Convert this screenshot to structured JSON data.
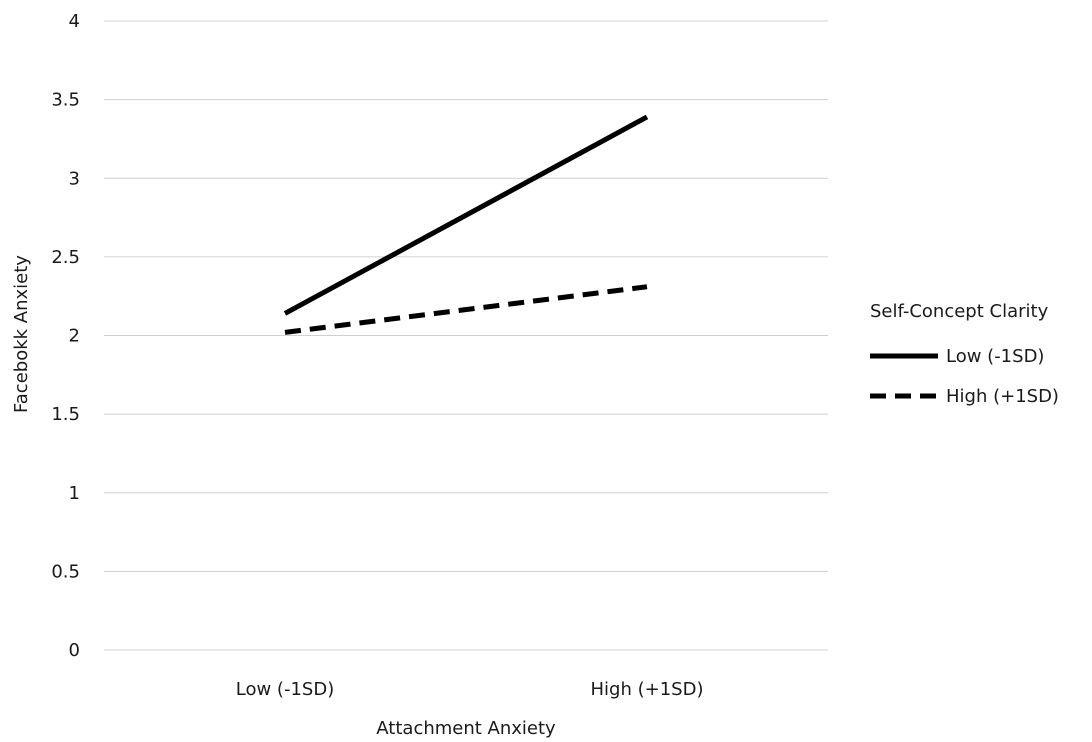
{
  "chart_data": {
    "type": "line",
    "title": "",
    "xlabel": "Attachment Anxiety",
    "ylabel": "Facebokk Anxiety",
    "categories": [
      "Low (-1SD)",
      "High (+1SD)"
    ],
    "ylim": [
      0,
      4
    ],
    "yticks": [
      "0",
      "0.5",
      "1",
      "1.5",
      "2",
      "2.5",
      "3",
      "3.5",
      "4"
    ],
    "grid": true,
    "legend": {
      "title": "Self-Concept Clarity",
      "placement": "right"
    },
    "series": [
      {
        "name": "Low (-1SD)",
        "values": [
          2.14,
          3.39
        ],
        "color": "#000000",
        "style": "solid"
      },
      {
        "name": "High (+1SD)",
        "values": [
          2.02,
          2.31
        ],
        "color": "#000000",
        "style": "dashed"
      }
    ]
  }
}
